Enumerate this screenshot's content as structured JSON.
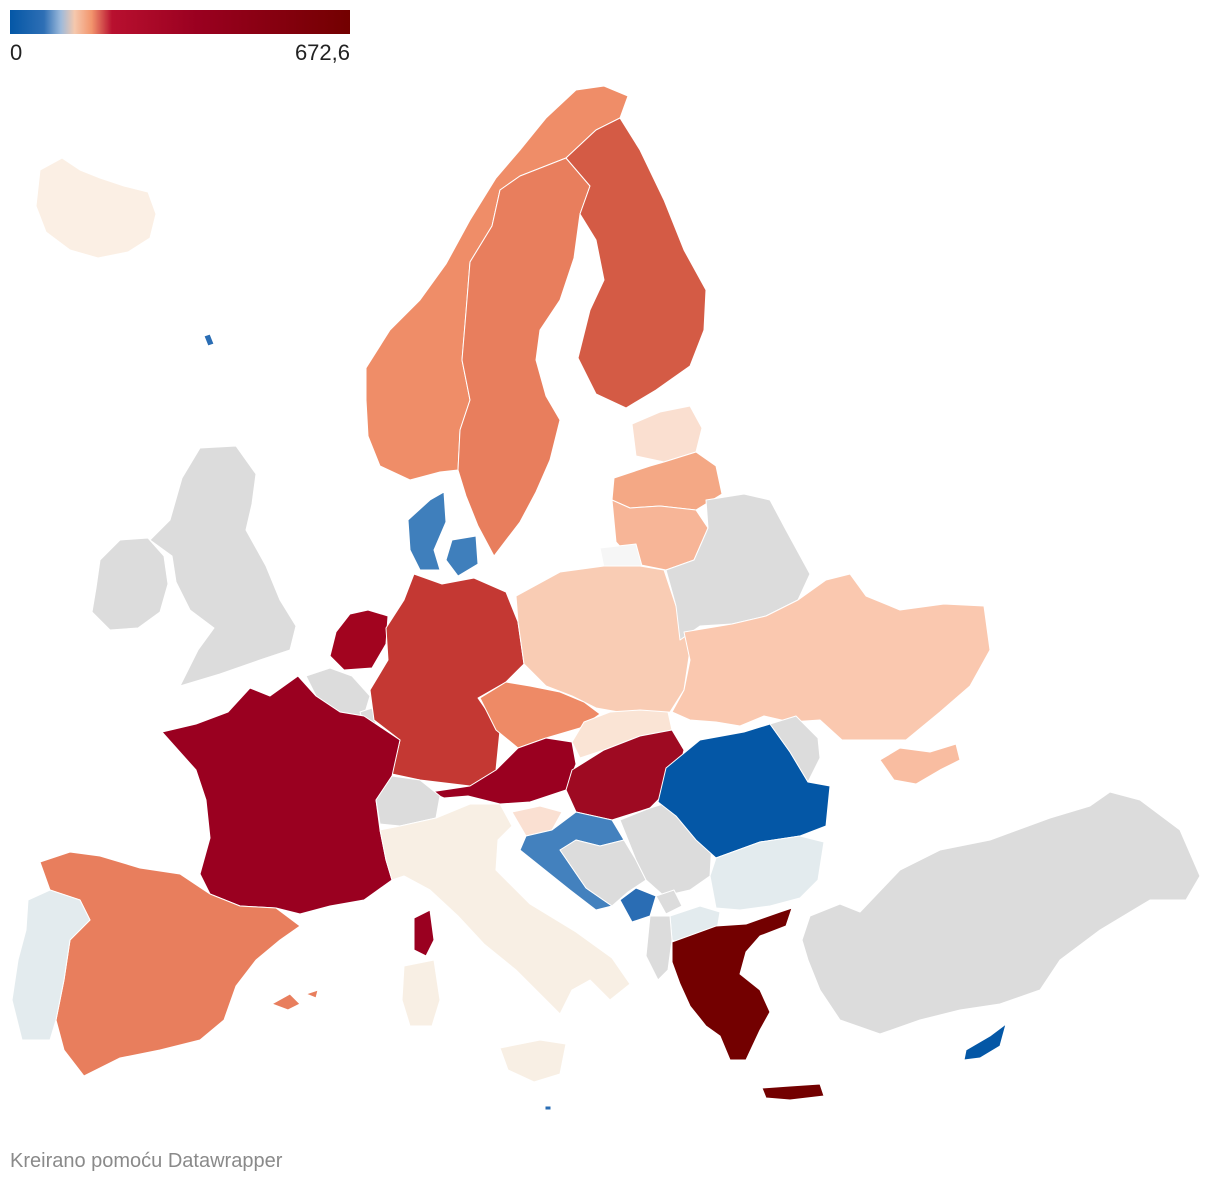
{
  "legend": {
    "min_label": "0",
    "max_label": "672,6",
    "gradient": [
      "#0457a6",
      "#5b94c8",
      "#f5ccb0",
      "#f4a582",
      "#b8102f",
      "#9a0020",
      "#730000"
    ]
  },
  "credit": "Kreirano pomoću Datawrapper",
  "colors": {
    "no_data": "#dcdcdc",
    "border": "#ffffff"
  },
  "regions": [
    {
      "name": "iceland",
      "color": "#fbefe4"
    },
    {
      "name": "faroe-islands",
      "color": "#2a6db4"
    },
    {
      "name": "ireland",
      "color": "#dcdcdc"
    },
    {
      "name": "united-kingdom",
      "color": "#dcdcdc"
    },
    {
      "name": "norway",
      "color": "#ef8d68"
    },
    {
      "name": "sweden",
      "color": "#e87e5d"
    },
    {
      "name": "finland",
      "color": "#d45b45"
    },
    {
      "name": "estonia",
      "color": "#fadfd0"
    },
    {
      "name": "latvia",
      "color": "#f4a885"
    },
    {
      "name": "lithuania",
      "color": "#f7b597"
    },
    {
      "name": "kaliningrad",
      "color": "#f6f6f6"
    },
    {
      "name": "denmark",
      "color": "#3f7fbc"
    },
    {
      "name": "netherlands",
      "color": "#a2041f"
    },
    {
      "name": "belgium",
      "color": "#dcdcdc"
    },
    {
      "name": "luxembourg",
      "color": "#dcdcdc"
    },
    {
      "name": "germany",
      "color": "#c43833"
    },
    {
      "name": "poland",
      "color": "#f9ccb4"
    },
    {
      "name": "belarus",
      "color": "#dcdcdc"
    },
    {
      "name": "ukraine",
      "color": "#fac8af"
    },
    {
      "name": "czechia",
      "color": "#ee8a66"
    },
    {
      "name": "slovakia",
      "color": "#fae4d5"
    },
    {
      "name": "austria",
      "color": "#9a0020"
    },
    {
      "name": "hungary",
      "color": "#9e0a22"
    },
    {
      "name": "france",
      "color": "#9a0020"
    },
    {
      "name": "corsica",
      "color": "#9a0020"
    },
    {
      "name": "switzerland",
      "color": "#dcdcdc"
    },
    {
      "name": "italy",
      "color": "#f8efe4"
    },
    {
      "name": "sardinia",
      "color": "#f8efe4"
    },
    {
      "name": "sicily",
      "color": "#f8efe4"
    },
    {
      "name": "slovenia",
      "color": "#fae0d2"
    },
    {
      "name": "croatia",
      "color": "#4381be"
    },
    {
      "name": "bosnia-and-herzegovina",
      "color": "#dcdcdc"
    },
    {
      "name": "serbia",
      "color": "#dcdcdc"
    },
    {
      "name": "montenegro",
      "color": "#2a6db4"
    },
    {
      "name": "kosovo",
      "color": "#dcdcdc"
    },
    {
      "name": "north-macedonia",
      "color": "#e3ebee"
    },
    {
      "name": "albania",
      "color": "#dcdcdc"
    },
    {
      "name": "romania",
      "color": "#0457a6"
    },
    {
      "name": "moldova",
      "color": "#dcdcdc"
    },
    {
      "name": "bulgaria",
      "color": "#e3ebee"
    },
    {
      "name": "greece",
      "color": "#730000"
    },
    {
      "name": "crete",
      "color": "#730000"
    },
    {
      "name": "turkey",
      "color": "#dcdcdc"
    },
    {
      "name": "cyprus",
      "color": "#0457a6"
    },
    {
      "name": "spain",
      "color": "#e87e5d"
    },
    {
      "name": "balearic-islands",
      "color": "#e87e5d"
    },
    {
      "name": "portugal",
      "color": "#e3ebee"
    },
    {
      "name": "crimea",
      "color": "#f9bda1"
    },
    {
      "name": "malta",
      "color": "#2a6db4"
    }
  ]
}
